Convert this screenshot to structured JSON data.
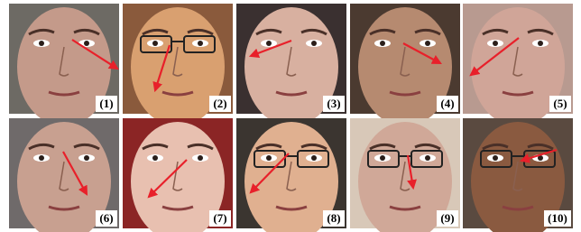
{
  "panels": [
    {
      "label": "(1)"
    },
    {
      "label": "(2)"
    },
    {
      "label": "(3)"
    },
    {
      "label": "(4)"
    },
    {
      "label": "(5)"
    },
    {
      "label": "(6)"
    },
    {
      "label": "(7)"
    },
    {
      "label": "(8)"
    },
    {
      "label": "(9)"
    },
    {
      "label": "(10)"
    }
  ]
}
